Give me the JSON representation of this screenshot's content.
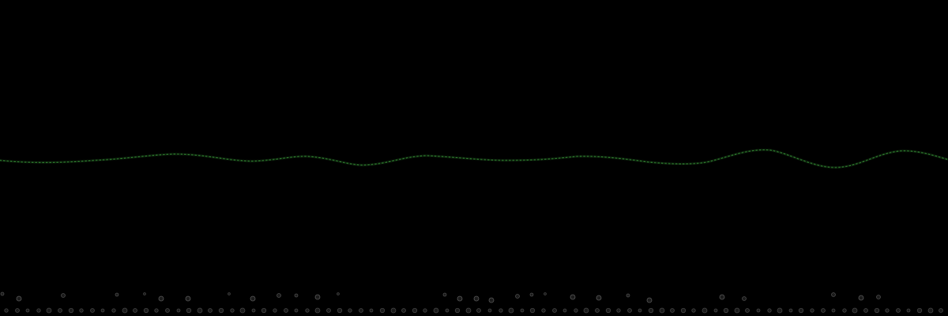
{
  "scene": {
    "background_color": "#000000",
    "waveform": {
      "stroke_color": "#2f7d2f",
      "glow_color": "#1e4d1e",
      "dash_style": "dotted"
    },
    "particles": {
      "color": "#8a8a8a",
      "fill_color": "#1a1a1a"
    }
  }
}
